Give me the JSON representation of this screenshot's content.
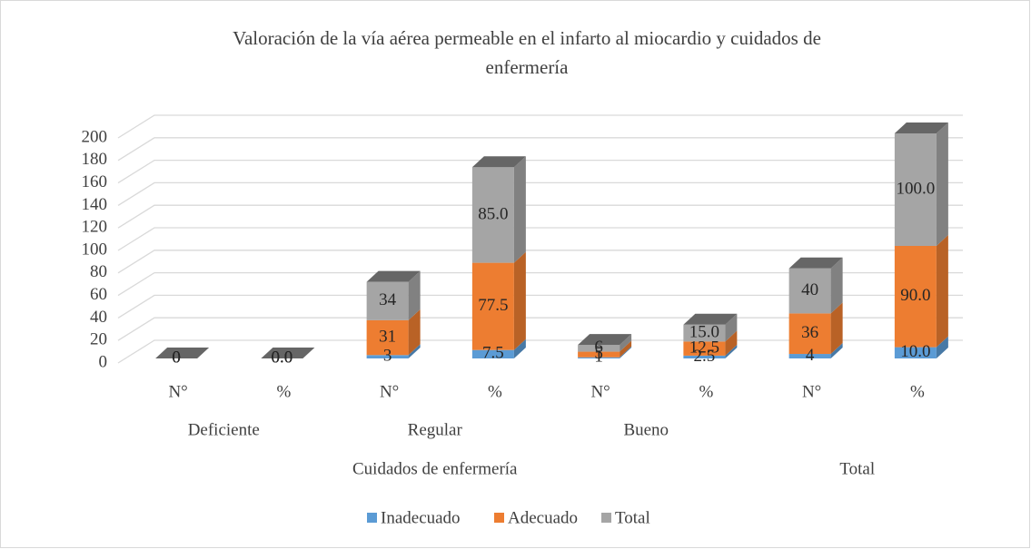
{
  "chart_data": {
    "type": "bar3d_stacked",
    "title": "Valoración de la vía aérea permeable en el infarto al miocardio y cuidados de enfermería",
    "categories": [
      "N°",
      "%",
      "N°",
      "%",
      "N°",
      "%",
      "N°",
      "%"
    ],
    "category_groups": [
      [
        "Deficiente",
        "Regular",
        "Bueno",
        null
      ],
      [
        "Cuidados de enfermería",
        "Total"
      ]
    ],
    "series": [
      {
        "name": "Inadecuado",
        "color": "#5b9bd5",
        "values": [
          0,
          0,
          3,
          7.5,
          1,
          2.5,
          4,
          10
        ],
        "value_labels": [
          "0",
          "0.0",
          "3",
          "7.5",
          "1",
          "2.5",
          "4",
          "10.0"
        ]
      },
      {
        "name": "Adecuado",
        "color": "#ed7d31",
        "values": [
          0,
          0,
          31,
          77.5,
          5,
          12.5,
          36,
          90
        ],
        "value_labels": [
          "0",
          "0.0",
          "31",
          "77.5",
          "5",
          "12.5",
          "36",
          "90.0"
        ]
      },
      {
        "name": "Total",
        "color": "#a5a5a5",
        "values": [
          0,
          0,
          34,
          85,
          6,
          15,
          40,
          100
        ],
        "value_labels": [
          "0",
          "0.0",
          "34",
          "85.0",
          "6",
          "15.0",
          "40",
          "100.0"
        ]
      }
    ],
    "ylim": [
      0,
      200
    ],
    "yticks": [
      0,
      20,
      40,
      60,
      80,
      100,
      120,
      140,
      160,
      180,
      200
    ],
    "grid": true,
    "legend": "bottom"
  }
}
